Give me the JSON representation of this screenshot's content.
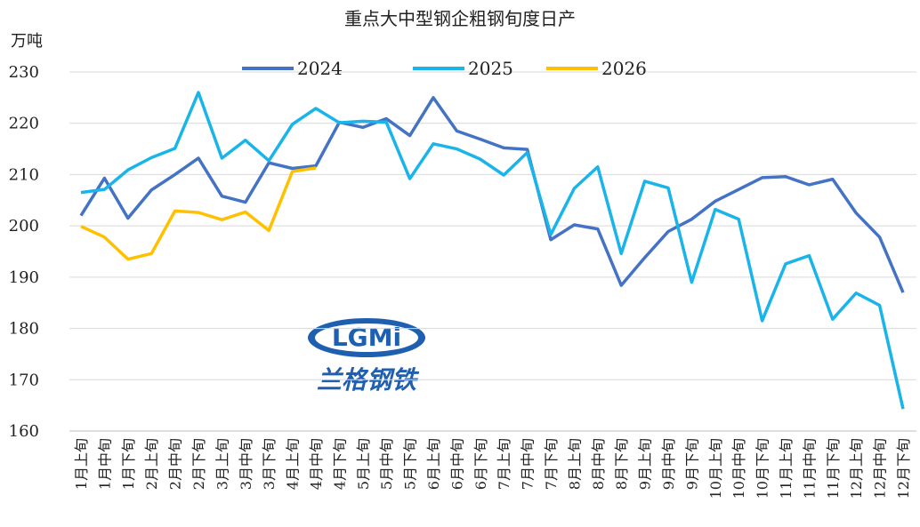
{
  "chart_data": {
    "type": "line",
    "title": "重点大中型钢企粗钢旬度日产",
    "y_label": "万吨",
    "watermark": {
      "logo": "LGMi",
      "name": "兰格钢铁"
    },
    "categories": [
      "1月上旬",
      "1月中旬",
      "1月下旬",
      "2月上旬",
      "2月中旬",
      "2月下旬",
      "3月上旬",
      "3月中旬",
      "3月下旬",
      "4月上旬",
      "4月中旬",
      "4月下旬",
      "5月上旬",
      "5月中旬",
      "5月下旬",
      "6月上旬",
      "6月中旬",
      "6月下旬",
      "7月上旬",
      "7月中旬",
      "7月下旬",
      "8月上旬",
      "8月中旬",
      "8月下旬",
      "9月上旬",
      "9月中旬",
      "9月下旬",
      "10月上旬",
      "10月中旬",
      "10月下旬",
      "11月上旬",
      "11月中旬",
      "11月下旬",
      "12月上旬",
      "12月中旬",
      "12月下旬"
    ],
    "series": [
      {
        "name": "2024",
        "color": "#4472c4",
        "values": [
          202,
          209.3,
          201.5,
          207,
          210,
          213.2,
          205.8,
          204.6,
          212.3,
          211.2,
          211.7,
          220.2,
          219.2,
          220.9,
          217.6,
          225,
          218.5,
          216.9,
          215.2,
          214.9,
          197.3,
          200.2,
          199.4,
          188.4,
          193.8,
          198.9,
          201.3,
          204.8,
          207.1,
          209.4,
          209.6,
          208,
          209.1,
          202.5,
          197.8,
          187
        ]
      },
      {
        "name": "2025",
        "color": "#19b4ea",
        "values": [
          206.5,
          207.1,
          210.9,
          213.3,
          215.1,
          226,
          213.2,
          216.7,
          212.7,
          219.8,
          222.9,
          220.1,
          220.4,
          220.2,
          209.2,
          216,
          215,
          213,
          209.9,
          214.3,
          198.3,
          207.3,
          211.5,
          194.6,
          208.7,
          207.4,
          189,
          203.2,
          201.3,
          181.5,
          192.6,
          194.2,
          181.8,
          186.9,
          184.5,
          164.3
        ]
      },
      {
        "name": "2026",
        "color": "#ffc000",
        "values": [
          199.9,
          197.8,
          193.5,
          194.6,
          202.9,
          202.6,
          201.2,
          202.7,
          199.1,
          210.6,
          211.3,
          null,
          null,
          null,
          null,
          null,
          null,
          null,
          null,
          null,
          null,
          null,
          null,
          null,
          null,
          null,
          null,
          null,
          null,
          null,
          null,
          null,
          null,
          null,
          null,
          null
        ]
      }
    ],
    "ylim": [
      160,
      230
    ],
    "yticks": [
      160,
      170,
      180,
      190,
      200,
      210,
      220,
      230
    ],
    "grid": true,
    "legend": "top"
  }
}
